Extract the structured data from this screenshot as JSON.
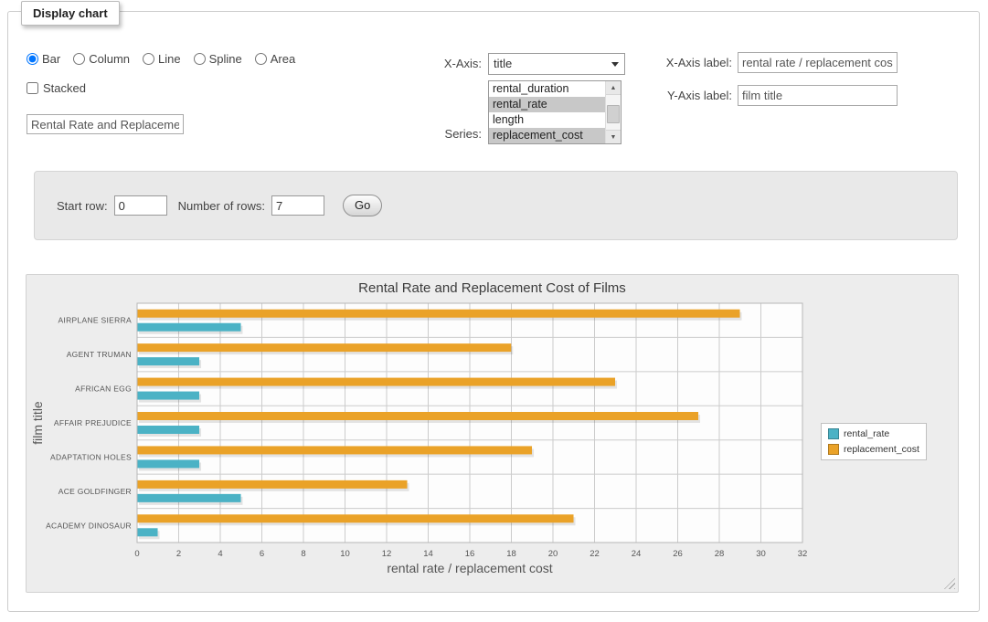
{
  "panel": {
    "title": "Display chart"
  },
  "controls": {
    "chart_types": [
      {
        "label": "Bar",
        "checked": true
      },
      {
        "label": "Column",
        "checked": false
      },
      {
        "label": "Line",
        "checked": false
      },
      {
        "label": "Spline",
        "checked": false
      },
      {
        "label": "Area",
        "checked": false
      }
    ],
    "stacked": {
      "label": "Stacked",
      "checked": false
    },
    "chart_title_value": "Rental Rate and Replacement Cost of Films",
    "x_axis": {
      "label": "X-Axis:",
      "value": "title"
    },
    "series_select": {
      "label": "Series:",
      "options": [
        {
          "label": "rental_duration",
          "selected": false
        },
        {
          "label": "rental_rate",
          "selected": true
        },
        {
          "label": "length",
          "selected": false
        },
        {
          "label": "replacement_cost",
          "selected": true
        }
      ]
    },
    "x_axis_label": {
      "label": "X-Axis label:",
      "value": "rental rate / replacement cost"
    },
    "y_axis_label": {
      "label": "Y-Axis label:",
      "value": "film title"
    }
  },
  "row_controls": {
    "start_row_label": "Start row:",
    "start_row_value": "0",
    "num_rows_label": "Number of rows:",
    "num_rows_value": "7",
    "go_label": "Go"
  },
  "chart_data": {
    "type": "bar",
    "orientation": "horizontal",
    "title": "Rental Rate and Replacement Cost of Films",
    "categories": [
      "AIRPLANE SIERRA",
      "AGENT TRUMAN",
      "AFRICAN EGG",
      "AFFAIR PREJUDICE",
      "ADAPTATION HOLES",
      "ACE GOLDFINGER",
      "ACADEMY DINOSAUR"
    ],
    "series": [
      {
        "name": "rental_rate",
        "color": "#4bb2c5",
        "values": [
          4.99,
          2.99,
          2.99,
          2.99,
          2.99,
          4.99,
          0.99
        ]
      },
      {
        "name": "replacement_cost",
        "color": "#EAA228",
        "values": [
          28.99,
          17.99,
          22.99,
          26.99,
          18.99,
          12.99,
          20.99
        ]
      }
    ],
    "xlabel": "rental rate / replacement cost",
    "ylabel": "film title",
    "xlim": [
      0,
      32
    ],
    "xtick_step": 2,
    "grid": true,
    "legend_position": "right"
  }
}
